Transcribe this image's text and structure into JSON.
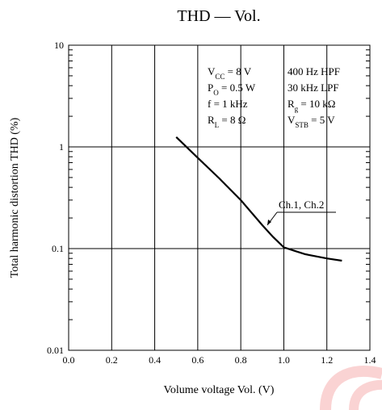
{
  "chart_data": {
    "type": "line",
    "title": "THD — Vol.",
    "xlabel": "Volume voltage  Vol.  (V)",
    "ylabel": "Total harmonic distortion  THD  (%)",
    "xlim": [
      0.0,
      1.4
    ],
    "ylim": [
      0.01,
      10
    ],
    "yscale": "log",
    "grid": true,
    "x_ticks": [
      "0.0",
      "0.2",
      "0.4",
      "0.6",
      "0.8",
      "1.0",
      "1.2",
      "1.4"
    ],
    "y_ticks": [
      "0.01",
      "0.1",
      "1",
      "10"
    ],
    "series": [
      {
        "name": "Ch.1, Ch.2",
        "x": [
          0.5,
          0.6,
          0.7,
          0.8,
          0.9,
          0.95,
          1.0,
          1.05,
          1.1,
          1.2,
          1.27
        ],
        "y": [
          1.25,
          0.78,
          0.49,
          0.3,
          0.17,
          0.13,
          0.103,
          0.095,
          0.088,
          0.08,
          0.076
        ]
      }
    ],
    "conditions": [
      {
        "base": "V",
        "sub": "CC",
        "rest": " = 8 V"
      },
      {
        "base": "P",
        "sub": "O",
        "rest": " = 0.5 W"
      },
      {
        "base": "f = 1 kHz",
        "sub": "",
        "rest": ""
      },
      {
        "base": "R",
        "sub": "L",
        "rest": " = 8 Ω"
      },
      {
        "base": "400 Hz HPF",
        "sub": "",
        "rest": ""
      },
      {
        "base": "30 kHz LPF",
        "sub": "",
        "rest": ""
      },
      {
        "base": "R",
        "sub": "g",
        "rest": " = 10 kΩ"
      },
      {
        "base": "V",
        "sub": "STB",
        "rest": " = 5 V"
      }
    ]
  }
}
